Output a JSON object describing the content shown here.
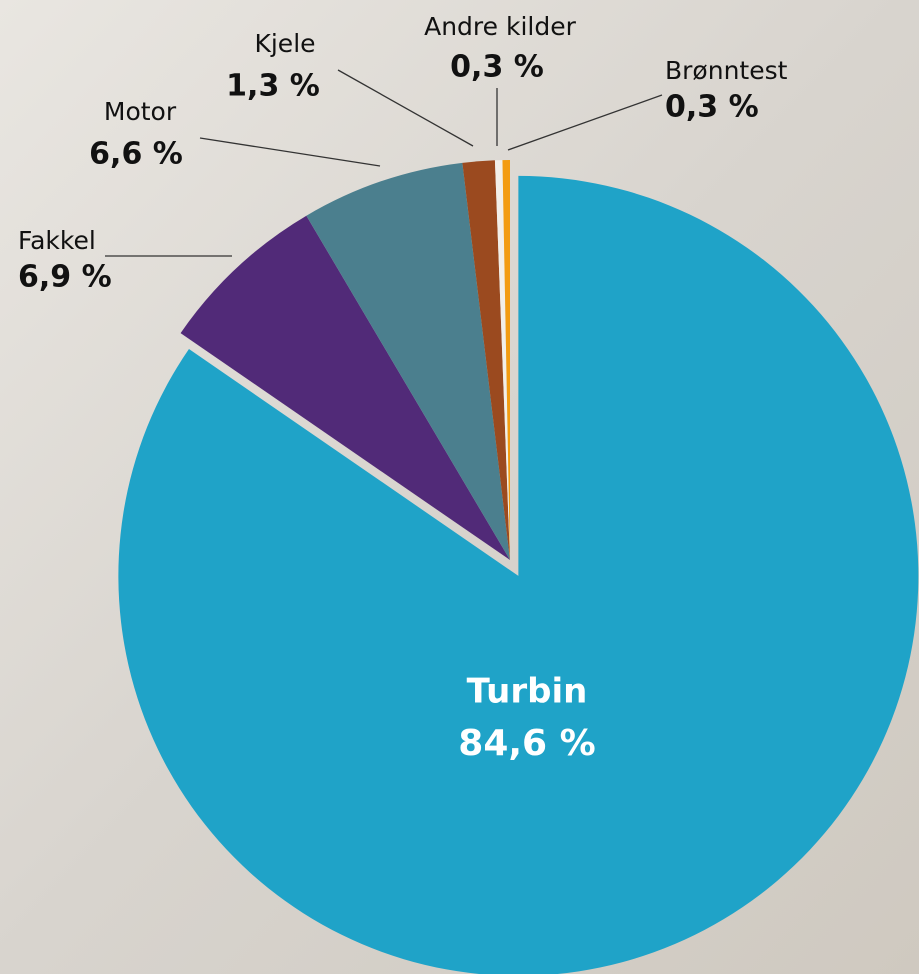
{
  "chart_data": {
    "type": "pie",
    "categories": [
      "Turbin",
      "Fakkel",
      "Motor",
      "Kjele",
      "Andre kilder",
      "Brønntest"
    ],
    "values": [
      84.6,
      6.9,
      6.6,
      1.3,
      0.3,
      0.3
    ],
    "value_labels": [
      "84,6 %",
      "6,9 %",
      "6,6 %",
      "1,3 %",
      "0,3 %",
      "0,3 %"
    ],
    "colors": [
      "#1fa3c8",
      "#512a78",
      "#4b7f8e",
      "#9b4a1f",
      "#f2efe9",
      "#f39c12"
    ]
  }
}
